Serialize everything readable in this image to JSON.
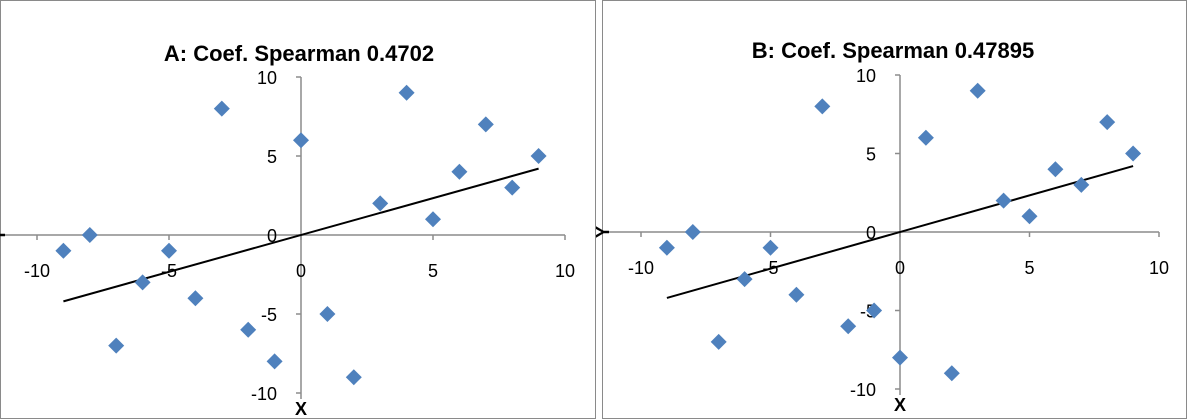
{
  "chart_data": [
    {
      "type": "scatter",
      "title": "A: Coef. Spearman 0.4702",
      "xlabel": "X",
      "ylabel": "Y",
      "xlim": [
        -10,
        10
      ],
      "ylim": [
        -10,
        10
      ],
      "x_ticks": [
        "-10",
        "-5",
        "0",
        "5",
        "10"
      ],
      "y_ticks": [
        "10",
        "5",
        "0",
        "-5",
        "-10"
      ],
      "grid": false,
      "legend": "none",
      "marker_color": "#4f81bd",
      "points": [
        {
          "x": -9,
          "y": -1
        },
        {
          "x": -8,
          "y": 0
        },
        {
          "x": -7,
          "y": -7
        },
        {
          "x": -6,
          "y": -3
        },
        {
          "x": -5,
          "y": -1
        },
        {
          "x": -4,
          "y": -4
        },
        {
          "x": -3,
          "y": 8
        },
        {
          "x": -2,
          "y": -6
        },
        {
          "x": -1,
          "y": -8
        },
        {
          "x": 0,
          "y": 6
        },
        {
          "x": 1,
          "y": -5
        },
        {
          "x": 2,
          "y": -9
        },
        {
          "x": 3,
          "y": 2
        },
        {
          "x": 4,
          "y": 9
        },
        {
          "x": 5,
          "y": 1
        },
        {
          "x": 6,
          "y": 4
        },
        {
          "x": 7,
          "y": 7
        },
        {
          "x": 8,
          "y": 3
        },
        {
          "x": 9,
          "y": 5
        }
      ],
      "trendline": {
        "x": [
          -9,
          9
        ],
        "y": [
          -4.2,
          4.2
        ]
      }
    },
    {
      "type": "scatter",
      "title": "B: Coef. Spearman 0.47895",
      "xlabel": "X",
      "ylabel": "Y",
      "xlim": [
        -10,
        10
      ],
      "ylim": [
        -10,
        10
      ],
      "x_ticks": [
        "-10",
        "-5",
        "0",
        "5",
        "10"
      ],
      "y_ticks": [
        "10",
        "5",
        "0",
        "-5",
        "-10"
      ],
      "grid": false,
      "legend": "none",
      "marker_color": "#4f81bd",
      "points": [
        {
          "x": -9,
          "y": -1
        },
        {
          "x": -8,
          "y": 0
        },
        {
          "x": -7,
          "y": -7
        },
        {
          "x": -6,
          "y": -3
        },
        {
          "x": -5,
          "y": -1
        },
        {
          "x": -4,
          "y": -4
        },
        {
          "x": -3,
          "y": 8
        },
        {
          "x": -2,
          "y": -6
        },
        {
          "x": -1,
          "y": -5
        },
        {
          "x": 0,
          "y": -8
        },
        {
          "x": 1,
          "y": 6
        },
        {
          "x": 2,
          "y": -9
        },
        {
          "x": 3,
          "y": 9
        },
        {
          "x": 4,
          "y": 2
        },
        {
          "x": 5,
          "y": 1
        },
        {
          "x": 6,
          "y": 4
        },
        {
          "x": 7,
          "y": 3
        },
        {
          "x": 8,
          "y": 7
        },
        {
          "x": 9,
          "y": 5
        }
      ],
      "trendline": {
        "x": [
          -9,
          9
        ],
        "y": [
          -4.2,
          4.2
        ]
      }
    }
  ]
}
